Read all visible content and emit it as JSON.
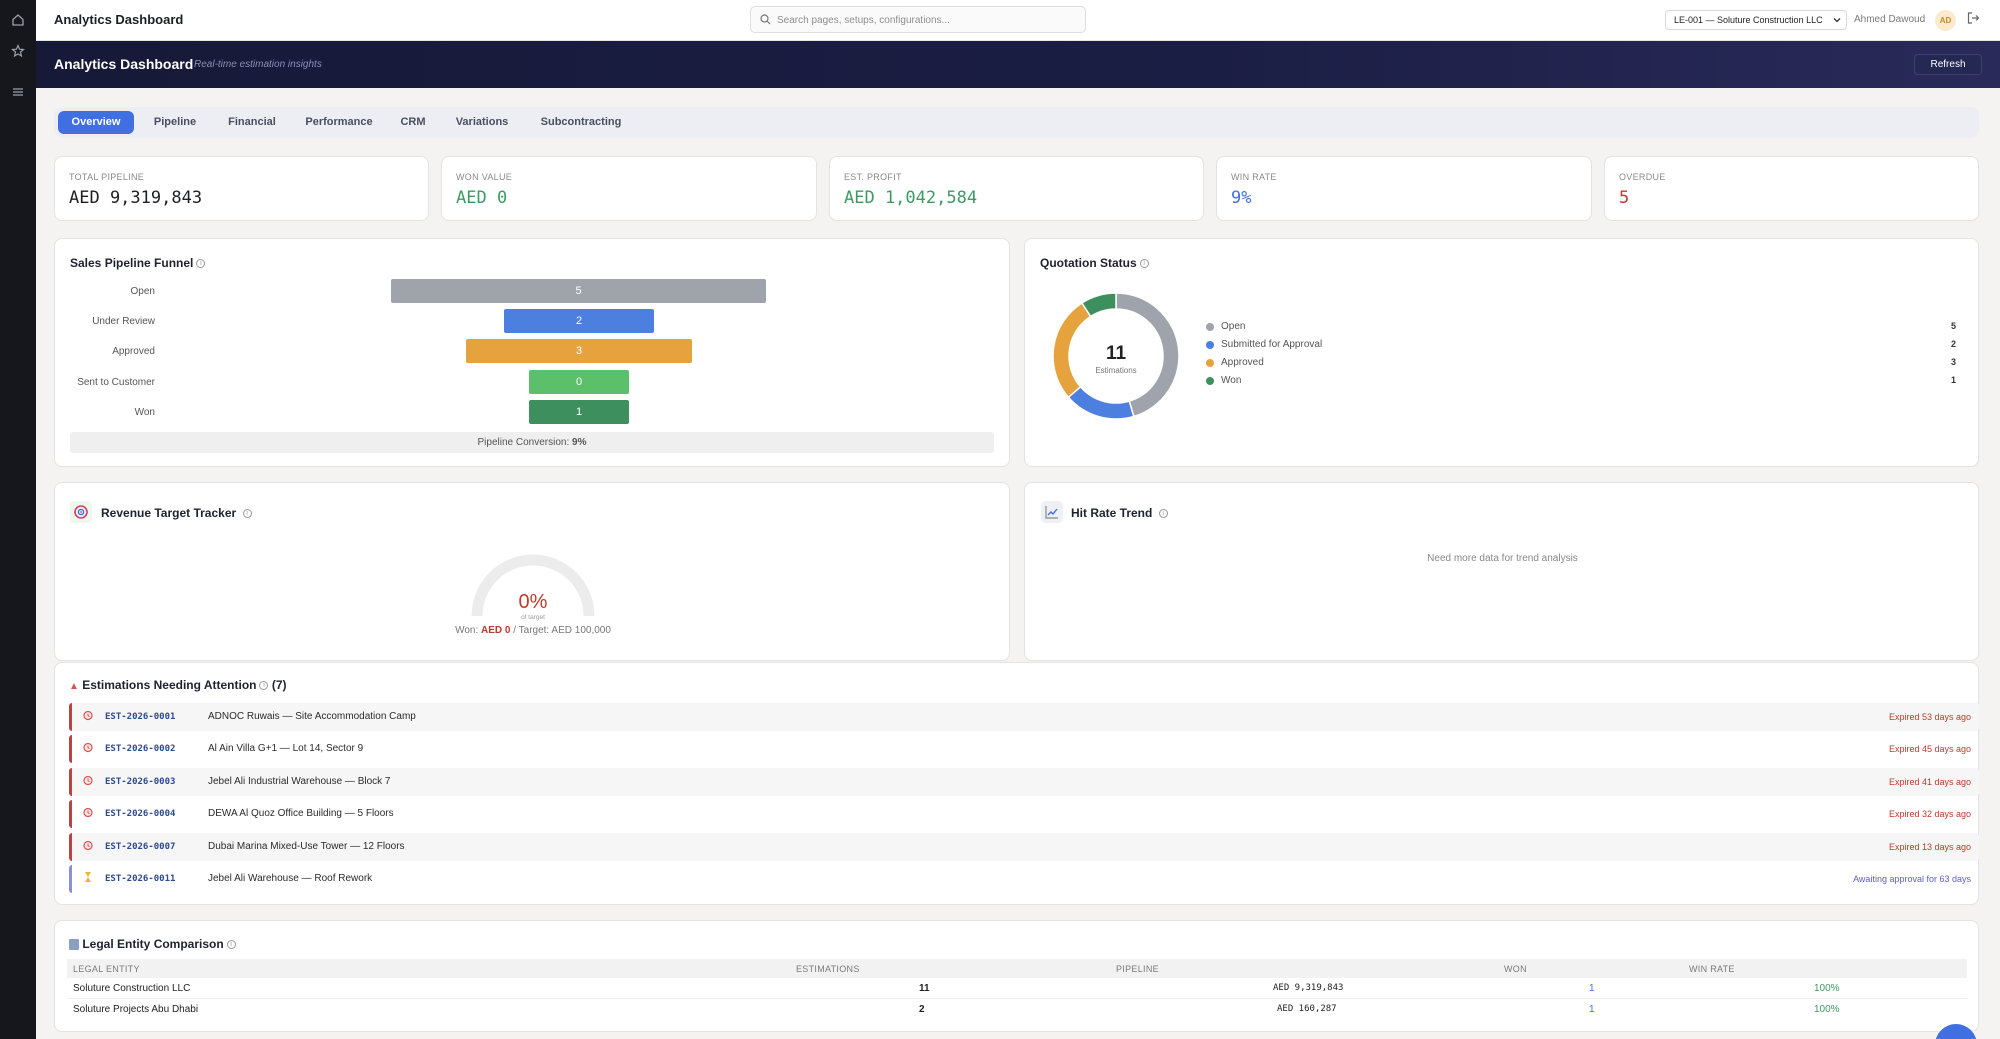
{
  "header": {
    "title": "Analytics Dashboard",
    "search_placeholder": "Search pages, setups, configurations...",
    "entity_selector": "LE-001 — Soluture Construction LLC",
    "user_name": "Ahmed Dawoud",
    "user_initials": "AD"
  },
  "banner": {
    "title": "Analytics Dashboard",
    "subtitle": "Real-time estimation insights",
    "refresh_label": "Refresh"
  },
  "tabs": [
    {
      "label": "Overview",
      "active": true
    },
    {
      "label": "Pipeline",
      "active": false
    },
    {
      "label": "Financial",
      "active": false
    },
    {
      "label": "Performance",
      "active": false
    },
    {
      "label": "CRM",
      "active": false
    },
    {
      "label": "Variations",
      "active": false
    },
    {
      "label": "Subcontracting",
      "active": false
    }
  ],
  "kpis": [
    {
      "label": "TOTAL PIPELINE",
      "value": "AED 9,319,843",
      "color": "#1d1f26"
    },
    {
      "label": "WON VALUE",
      "value": "AED 0",
      "color": "#3d9a63"
    },
    {
      "label": "EST. PROFIT",
      "value": "AED 1,042,584",
      "color": "#3d9a63"
    },
    {
      "label": "WIN RATE",
      "value": "9%",
      "color": "#3f6fe0"
    },
    {
      "label": "OVERDUE",
      "value": "5",
      "color": "#c0392b"
    }
  ],
  "funnel": {
    "title": "Sales Pipeline Funnel",
    "conversion_label": "Pipeline Conversion:",
    "conversion_value": "9%",
    "stages": [
      {
        "label": "Open",
        "value": "5",
        "color": "#9fa3ab"
      },
      {
        "label": "Under Review",
        "value": "2",
        "color": "#4d7fe0"
      },
      {
        "label": "Approved",
        "value": "3",
        "color": "#e6a23c"
      },
      {
        "label": "Sent to Customer",
        "value": "0",
        "color": "#5cbf6a"
      },
      {
        "label": "Won",
        "value": "1",
        "color": "#3d8f5e"
      }
    ]
  },
  "quotation": {
    "title": "Quotation Status",
    "total": "11",
    "total_label": "Estimations",
    "items": [
      {
        "label": "Open",
        "count": "5",
        "color": "#9fa3ab"
      },
      {
        "label": "Submitted for Approval",
        "count": "2",
        "color": "#4d7fe0"
      },
      {
        "label": "Approved",
        "count": "3",
        "color": "#e6a23c"
      },
      {
        "label": "Won",
        "count": "1",
        "color": "#3d8f5e"
      }
    ]
  },
  "revenue": {
    "title": "Revenue Target Tracker",
    "percent": "0%",
    "percent_label": "of target",
    "won_prefix": "Won:",
    "won_value": "AED 0",
    "target_text": "/ Target: AED 100,000",
    "progress_fraction": 0
  },
  "hit_rate": {
    "title": "Hit Rate Trend",
    "empty_text": "Need more data for trend analysis"
  },
  "attention": {
    "title": "Estimations Needing Attention",
    "count": "(7)",
    "rows": [
      {
        "id": "EST-2026-0001",
        "name": "ADNOC Ruwais — Site Accommodation Camp",
        "status": "Expired 53 days ago",
        "kind": "expired"
      },
      {
        "id": "EST-2026-0002",
        "name": "Al Ain Villa G+1 — Lot 14, Sector 9",
        "status": "Expired 45 days ago",
        "kind": "expired"
      },
      {
        "id": "EST-2026-0003",
        "name": "Jebel Ali Industrial Warehouse — Block 7",
        "status": "Expired 41 days ago",
        "kind": "expired"
      },
      {
        "id": "EST-2026-0004",
        "name": "DEWA Al Quoz Office Building — 5 Floors",
        "status": "Expired 32 days ago",
        "kind": "expired"
      },
      {
        "id": "EST-2026-0007",
        "name": "Dubai Marina Mixed-Use Tower — 12 Floors",
        "status": "Expired 13 days ago",
        "kind": "expired"
      },
      {
        "id": "EST-2026-0011",
        "name": "Jebel Ali Warehouse — Roof Rework",
        "status": "Awaiting approval for 63 days",
        "kind": "awaiting"
      }
    ]
  },
  "legal": {
    "title": "Legal Entity Comparison",
    "headers": [
      "LEGAL ENTITY",
      "ESTIMATIONS",
      "PIPELINE",
      "WON",
      "WIN RATE"
    ],
    "rows": [
      {
        "entity": "Soluture Construction LLC",
        "estimations": "11",
        "pipeline": "AED 9,319,843",
        "won": "1",
        "win_rate": "100%"
      },
      {
        "entity": "Soluture Projects Abu Dhabi",
        "estimations": "2",
        "pipeline": "AED 160,287",
        "won": "1",
        "win_rate": "100%"
      }
    ]
  }
}
